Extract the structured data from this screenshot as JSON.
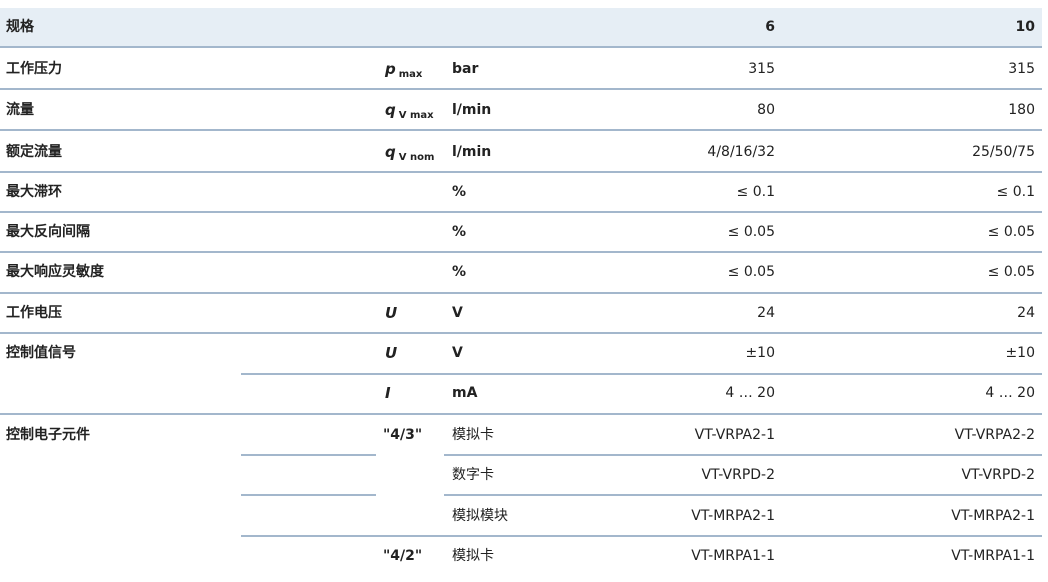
{
  "header": {
    "label": "规格",
    "col1": "6",
    "col2": "10"
  },
  "rows": [
    {
      "label": "工作压力",
      "symbol": "p",
      "sub": "max",
      "unit": "bar",
      "v6": "315",
      "v10": "315"
    },
    {
      "label": "流量",
      "symbol": "q",
      "sub": "V max",
      "unit": "l/min",
      "v6": "80",
      "v10": "180"
    },
    {
      "label": "额定流量",
      "symbol": "q",
      "sub": "V nom",
      "unit": "l/min",
      "v6": "4/8/16/32",
      "v10": "25/50/75"
    },
    {
      "label": "最大滞环",
      "unit": "%",
      "v6": "≤ 0.1",
      "v10": "≤ 0.1"
    },
    {
      "label": "最大反向间隔",
      "unit": "%",
      "v6": "≤ 0.05",
      "v10": "≤ 0.05"
    },
    {
      "label": "最大响应灵敏度",
      "unit": "%",
      "v6": "≤ 0.05",
      "v10": "≤ 0.05"
    },
    {
      "label": "工作电压",
      "symbol": "U",
      "unit": "V",
      "v6": "24",
      "v10": "24"
    },
    {
      "label": "控制值信号",
      "symbol": "U",
      "unit": "V",
      "v6": "±10",
      "v10": "±10"
    },
    {
      "symbol": "I",
      "unit": "mA",
      "v6": "4 … 20",
      "v10": "4 … 20"
    },
    {
      "label": "控制电子元件",
      "group": "\"4/3\"",
      "unit": "模拟卡",
      "v6": "VT-VRPA2-1",
      "v10": "VT-VRPA2-2"
    },
    {
      "unit": "数字卡",
      "v6": "VT-VRPD-2",
      "v10": "VT-VRPD-2"
    },
    {
      "unit": "模拟模块",
      "v6": "VT-MRPA2-1",
      "v10": "VT-MRPA2-1"
    },
    {
      "group": "\"4/2\"",
      "unit": "模拟卡",
      "v6": "VT-MRPA1-1",
      "v10": "VT-MRPA1-1"
    }
  ]
}
